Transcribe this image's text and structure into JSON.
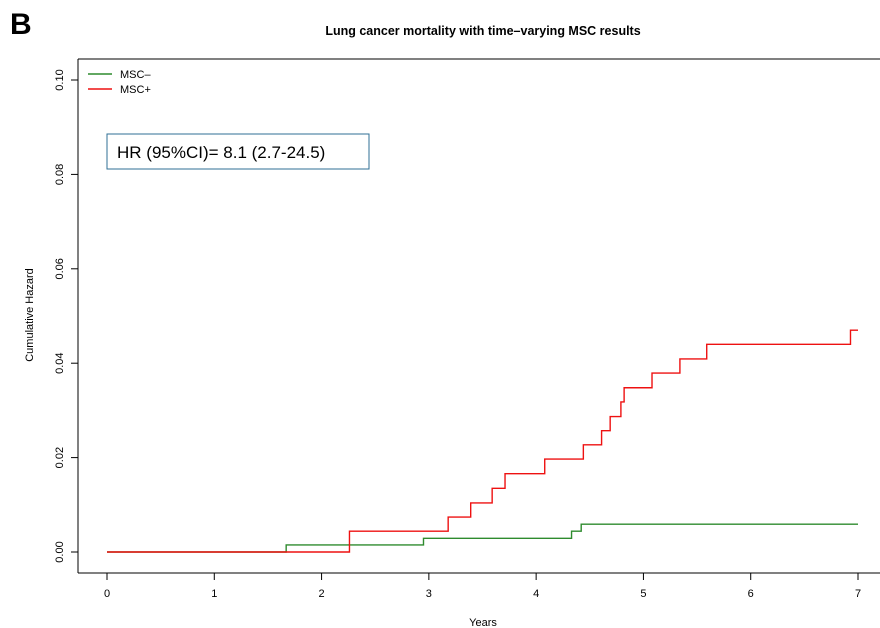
{
  "panel_letter": "B",
  "chart_data": {
    "type": "line",
    "step": true,
    "title": "Lung cancer mortality with time–varying MSC results",
    "xlabel": "Years",
    "ylabel": "Cumulative Hazard",
    "xlim": [
      0,
      7
    ],
    "ylim": [
      0,
      0.1
    ],
    "xticks": [
      0,
      1,
      2,
      3,
      4,
      5,
      6,
      7
    ],
    "xtick_labels": [
      "0",
      "1",
      "2",
      "3",
      "4",
      "5",
      "6",
      "7"
    ],
    "yticks": [
      0,
      0.02,
      0.04,
      0.06,
      0.08,
      0.1
    ],
    "ytick_labels": [
      "0.00",
      "0.02",
      "0.04",
      "0.06",
      "0.08",
      "0.10"
    ],
    "grid": false,
    "legend_position": "top-left",
    "annotation": "HR (95%CI)= 8.1 (2.7-24.5)",
    "annotation_border_color": "#2f6f95",
    "series": [
      {
        "name": "MSC–",
        "color": "#2e8b2e",
        "x": [
          0,
          1.67,
          2.95,
          4.33,
          4.42,
          7.0
        ],
        "y": [
          0,
          0.0015,
          0.0029,
          0.0044,
          0.0059,
          0.0059
        ]
      },
      {
        "name": "MSC+",
        "color": "#ee1111",
        "x": [
          0,
          2.26,
          3.18,
          3.39,
          3.59,
          3.71,
          4.08,
          4.44,
          4.61,
          4.69,
          4.79,
          4.82,
          5.08,
          5.34,
          5.59,
          6.93,
          7.0
        ],
        "y": [
          0,
          0.0044,
          0.0074,
          0.0104,
          0.0135,
          0.0166,
          0.0197,
          0.0227,
          0.0257,
          0.0287,
          0.0318,
          0.0348,
          0.0379,
          0.0409,
          0.044,
          0.047,
          0.047
        ]
      }
    ]
  }
}
